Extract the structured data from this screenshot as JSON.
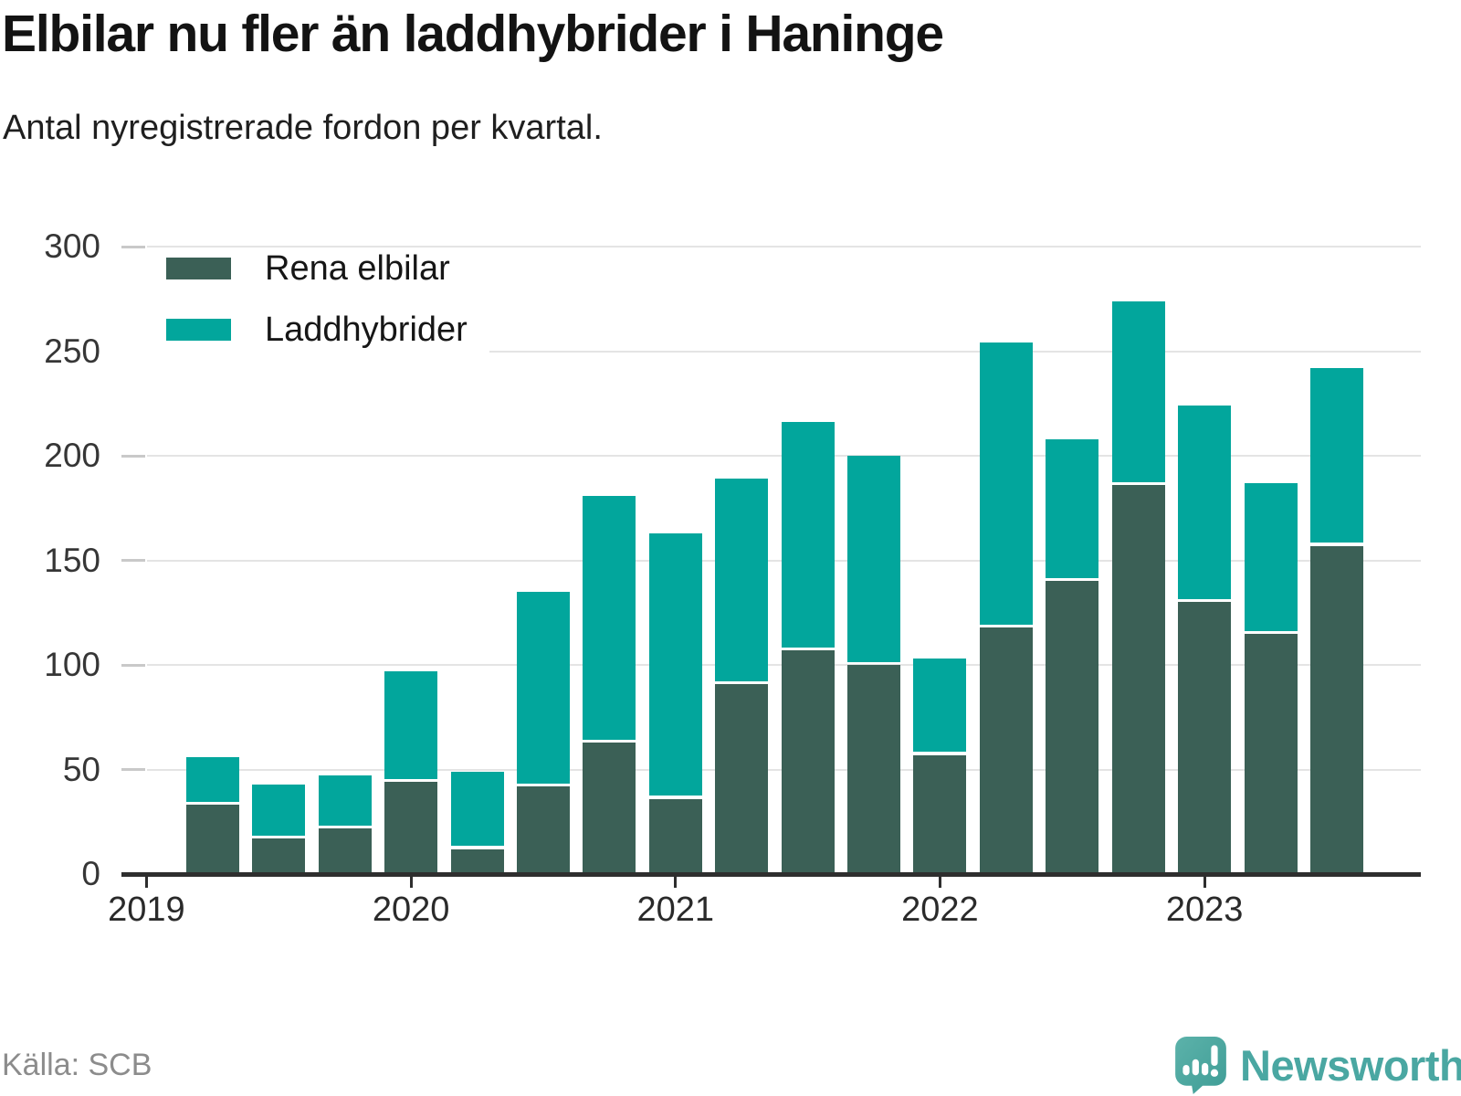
{
  "header": {
    "title": "Elbilar nu fler än laddhybrider i Haninge",
    "subtitle": "Antal nyregistrerade fordon per kvartal."
  },
  "footer": {
    "source": "Källa: SCB",
    "brand": "Newsworthy"
  },
  "chart_data": {
    "type": "bar",
    "stacked": true,
    "title": "Elbilar nu fler än laddhybrider i Haninge",
    "subtitle": "Antal nyregistrerade fordon per kvartal.",
    "categories": [
      "2019 K2",
      "2019 K3",
      "2019 K4",
      "2020 K1",
      "2020 K2",
      "2020 K3",
      "2020 K4",
      "2021 K1",
      "2021 K2",
      "2021 K3",
      "2021 K4",
      "2022 K1",
      "2022 K2",
      "2022 K3",
      "2022 K4",
      "2023 K1",
      "2023 K2",
      "2023 K3"
    ],
    "series": [
      {
        "name": "Rena elbilar",
        "color": "#3b6056",
        "values": [
          33,
          17,
          22,
          44,
          12,
          42,
          63,
          36,
          91,
          107,
          100,
          57,
          118,
          140,
          186,
          130,
          115,
          157
        ]
      },
      {
        "name": "Laddhybrider",
        "color": "#02a69c",
        "values": [
          23,
          26,
          25,
          53,
          37,
          93,
          118,
          127,
          98,
          109,
          100,
          46,
          136,
          68,
          88,
          94,
          72,
          85
        ]
      }
    ],
    "stack_totals": [
      56,
      43,
      47,
      97,
      49,
      135,
      181,
      163,
      189,
      216,
      200,
      103,
      254,
      208,
      274,
      224,
      187,
      242
    ],
    "xlabel": "",
    "ylabel": "",
    "x_tick_labels": [
      "2019",
      "2020",
      "2021",
      "2022",
      "2023"
    ],
    "yticks": [
      0,
      50,
      100,
      150,
      200,
      250,
      300
    ],
    "ylim": [
      0,
      300
    ],
    "grid": "horizontal",
    "legend_position": "top-left",
    "axis_color": "#2e2e2e",
    "grid_color": "#e4e4e4"
  }
}
